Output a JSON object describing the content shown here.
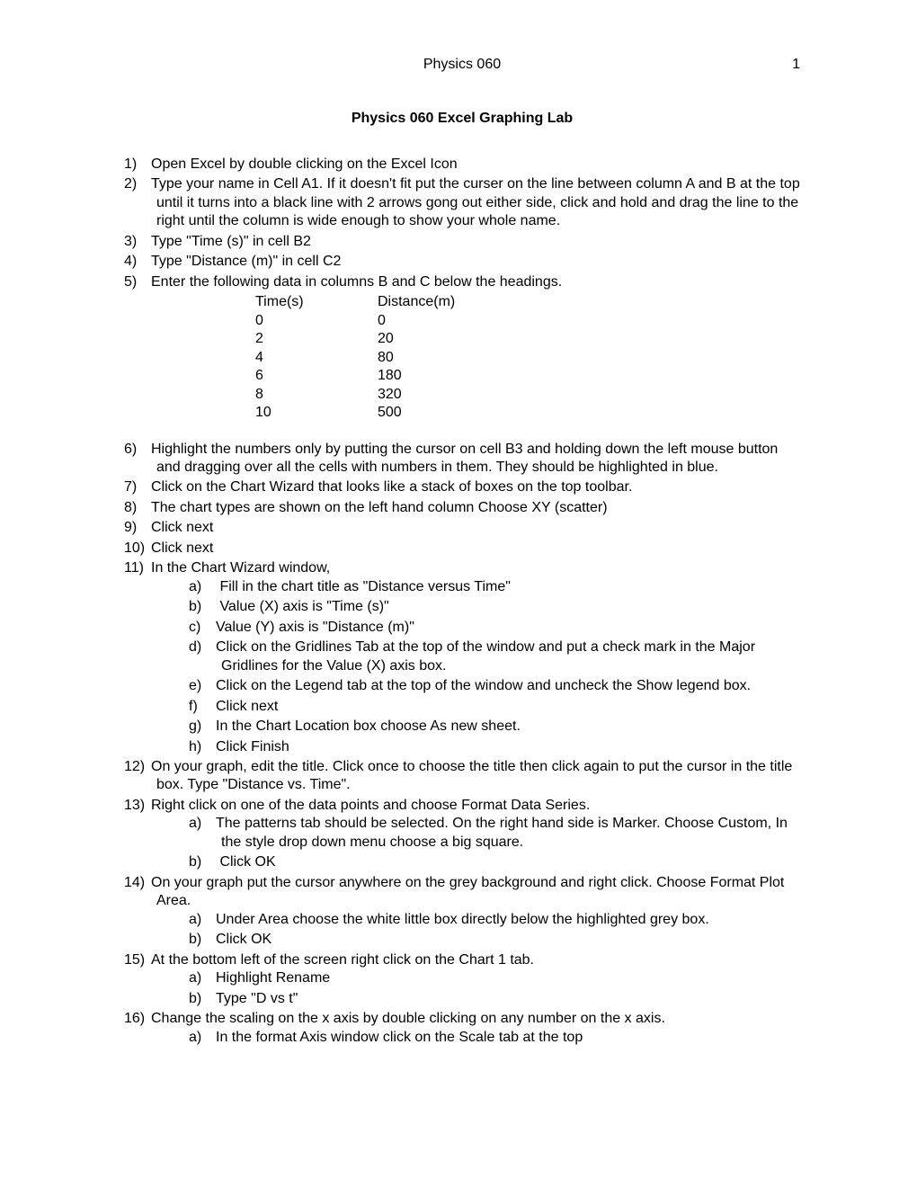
{
  "header": {
    "course": "Physics 060",
    "page": "1"
  },
  "title": "Physics 060 Excel Graphing Lab",
  "table": {
    "headers": {
      "time": "Time(s)",
      "distance": "Distance(m)"
    },
    "rows": [
      {
        "time": "0",
        "distance": "0"
      },
      {
        "time": "2",
        "distance": "20"
      },
      {
        "time": "4",
        "distance": "80"
      },
      {
        "time": "6",
        "distance": "180"
      },
      {
        "time": "8",
        "distance": "320"
      },
      {
        "time": "10",
        "distance": "500"
      }
    ]
  },
  "items": {
    "s1": {
      "num": "1)",
      "text": "Open Excel by double clicking on the Excel Icon"
    },
    "s2": {
      "num": "2)",
      "text": "Type your name in Cell A1.  If it doesn't fit put the curser on the line between column A and B at the top until it turns into a black line with 2 arrows gong out either side, click and hold and drag the line to the right until the column is wide enough to show your whole name."
    },
    "s3": {
      "num": "3)",
      "text": "Type \"Time (s)\" in cell B2"
    },
    "s4": {
      "num": "4)",
      "text": "Type \"Distance (m)\" in cell C2"
    },
    "s5": {
      "num": "5)",
      "text": "Enter the following data in columns B and C below the headings."
    },
    "s6": {
      "num": "6)",
      "text": "Highlight the numbers only by putting the cursor on cell B3 and holding down the left mouse button and dragging over all the cells with numbers in them.  They should be highlighted in blue."
    },
    "s7": {
      "num": "7)",
      "text": "Click on the Chart Wizard that looks like a stack of boxes on the top toolbar."
    },
    "s8": {
      "num": "8)",
      "text": "The chart types are shown on the left hand column Choose XY (scatter)"
    },
    "s9": {
      "num": "9)",
      "text": "Click next"
    },
    "s10": {
      "num": "10)",
      "text": "Click next"
    },
    "s11": {
      "num": "11)",
      "text": "In the Chart Wizard window,"
    },
    "s11a": {
      "num": "a)",
      "text": " Fill in the chart title as \"Distance versus Time\""
    },
    "s11b": {
      "num": "b)",
      "text": " Value (X) axis is \"Time (s)\""
    },
    "s11c": {
      "num": "c)",
      "text": "Value (Y) axis is \"Distance (m)\""
    },
    "s11d": {
      "num": "d)",
      "text": "Click on the Gridlines Tab at the top of the window and put a check mark in the Major Gridlines for the Value (X) axis box."
    },
    "s11e": {
      "num": "e)",
      "text": "Click on the Legend tab at the top of the window and uncheck the Show legend box."
    },
    "s11f": {
      "num": "f)",
      "text": "Click next"
    },
    "s11g": {
      "num": "g)",
      "text": "In the Chart Location box choose As new sheet."
    },
    "s11h": {
      "num": "h)",
      "text": "Click Finish"
    },
    "s12": {
      "num": "12)",
      "text": "On your graph, edit the title. Click once to choose the title then click again to put the cursor in the title box. Type \"Distance vs. Time\"."
    },
    "s13": {
      "num": "13)",
      "text": "Right click on one of the data points and choose Format Data Series."
    },
    "s13a": {
      "num": "a)",
      "text": "The patterns tab should be selected. On the right hand side is Marker. Choose Custom, In the style drop down menu choose a big square."
    },
    "s13b": {
      "num": "b)",
      "text": " Click OK"
    },
    "s14": {
      "num": "14)",
      "text": "On your graph put the cursor anywhere on the grey background and right click. Choose Format Plot Area."
    },
    "s14a": {
      "num": "a)",
      "text": "Under Area choose the white little box directly below the highlighted grey box."
    },
    "s14b": {
      "num": "b)",
      "text": "Click OK"
    },
    "s15": {
      "num": "15)",
      "text": "At the bottom left of the screen right click on the Chart 1 tab."
    },
    "s15a": {
      "num": "a)",
      "text": "Highlight Rename"
    },
    "s15b": {
      "num": "b)",
      "text": "Type \"D vs t\""
    },
    "s16": {
      "num": "16)",
      "text": "Change the scaling on the x axis by double clicking on any number on the x axis."
    },
    "s16a": {
      "num": "a)",
      "text": "In the format Axis window click on the Scale tab at the top"
    }
  }
}
